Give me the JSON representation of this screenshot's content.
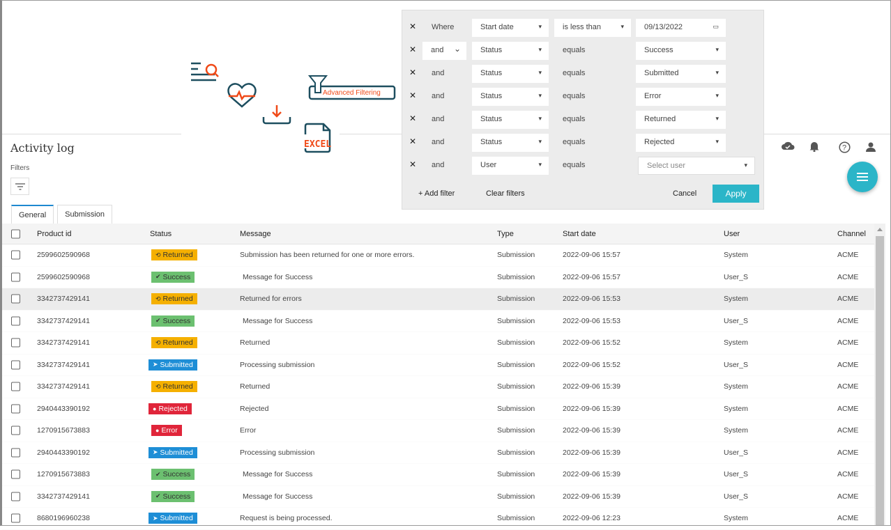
{
  "header": {
    "title": "Activity log",
    "filters_label": "Filters"
  },
  "illustration": {
    "callout": "Advanced Filtering",
    "excel_label": "EXCEL",
    "colors": {
      "dark": "#1d4e5f",
      "accent": "#f04a18"
    }
  },
  "tabs": [
    {
      "label": "General",
      "active": true
    },
    {
      "label": "Submission",
      "active": false
    }
  ],
  "toolbar_icons": [
    "cloud-check-icon",
    "bell-icon",
    "help-icon",
    "user-icon"
  ],
  "filter_panel": {
    "rows": [
      {
        "conjunction": "Where",
        "field": "Start date",
        "operator": "is less than",
        "value": "09/13/2022",
        "value_type": "date"
      },
      {
        "conjunction": "and",
        "conjunction_select": true,
        "field": "Status",
        "operator": "equals",
        "value": "Success"
      },
      {
        "conjunction": "and",
        "field": "Status",
        "operator": "equals",
        "value": "Submitted"
      },
      {
        "conjunction": "and",
        "field": "Status",
        "operator": "equals",
        "value": "Error"
      },
      {
        "conjunction": "and",
        "field": "Status",
        "operator": "equals",
        "value": "Returned"
      },
      {
        "conjunction": "and",
        "field": "Status",
        "operator": "equals",
        "value": "Rejected"
      },
      {
        "conjunction": "and",
        "field": "User",
        "operator": "equals",
        "value": "",
        "placeholder": "Select user"
      }
    ],
    "add_filter": "+ Add filter",
    "clear_filters": "Clear filters",
    "cancel": "Cancel",
    "apply": "Apply"
  },
  "colors": {
    "accent": "#2bb5c8",
    "Returned": "#f5b000",
    "Success": "#6cc070",
    "Submitted": "#1e8ed6",
    "Rejected": "#e0253a",
    "Error": "#e0253a"
  },
  "table": {
    "columns": [
      "Product id",
      "Status",
      "Message",
      "Type",
      "Start date",
      "User",
      "Channel"
    ],
    "rows": [
      [
        "2599602590968",
        "Returned",
        "Submission has been returned for one or more errors.",
        "Submission",
        "2022-09-06 15:57",
        "System",
        "ACME"
      ],
      [
        "2599602590968",
        "Success",
        "Message for Success",
        "Submission",
        "2022-09-06 15:57",
        "User_S",
        "ACME"
      ],
      [
        "3342737429141",
        "Returned",
        "Returned for errors",
        "Submission",
        "2022-09-06 15:53",
        "System",
        "ACME"
      ],
      [
        "3342737429141",
        "Success",
        "Message for Success",
        "Submission",
        "2022-09-06 15:53",
        "User_S",
        "ACME"
      ],
      [
        "3342737429141",
        "Returned",
        "Returned",
        "Submission",
        "2022-09-06 15:52",
        "System",
        "ACME"
      ],
      [
        "3342737429141",
        "Submitted",
        "Processing submission",
        "Submission",
        "2022-09-06 15:52",
        "User_S",
        "ACME"
      ],
      [
        "3342737429141",
        "Returned",
        "Returned",
        "Submission",
        "2022-09-06 15:39",
        "System",
        "ACME"
      ],
      [
        "2940443390192",
        "Rejected",
        "Rejected",
        "Submission",
        "2022-09-06 15:39",
        "System",
        "ACME"
      ],
      [
        "1270915673883",
        "Error",
        "Error",
        "Submission",
        "2022-09-06 15:39",
        "System",
        "ACME"
      ],
      [
        "2940443390192",
        "Submitted",
        "Processing submission",
        "Submission",
        "2022-09-06 15:39",
        "User_S",
        "ACME"
      ],
      [
        "1270915673883",
        "Success",
        "Message for Success",
        "Submission",
        "2022-09-06 15:39",
        "User_S",
        "ACME"
      ],
      [
        "3342737429141",
        "Success",
        "Message for Success",
        "Submission",
        "2022-09-06 15:39",
        "User_S",
        "ACME"
      ],
      [
        "8680196960238",
        "Submitted",
        "Request is being processed.",
        "Submission",
        "2022-09-06 12:23",
        "System",
        "ACME"
      ]
    ]
  }
}
